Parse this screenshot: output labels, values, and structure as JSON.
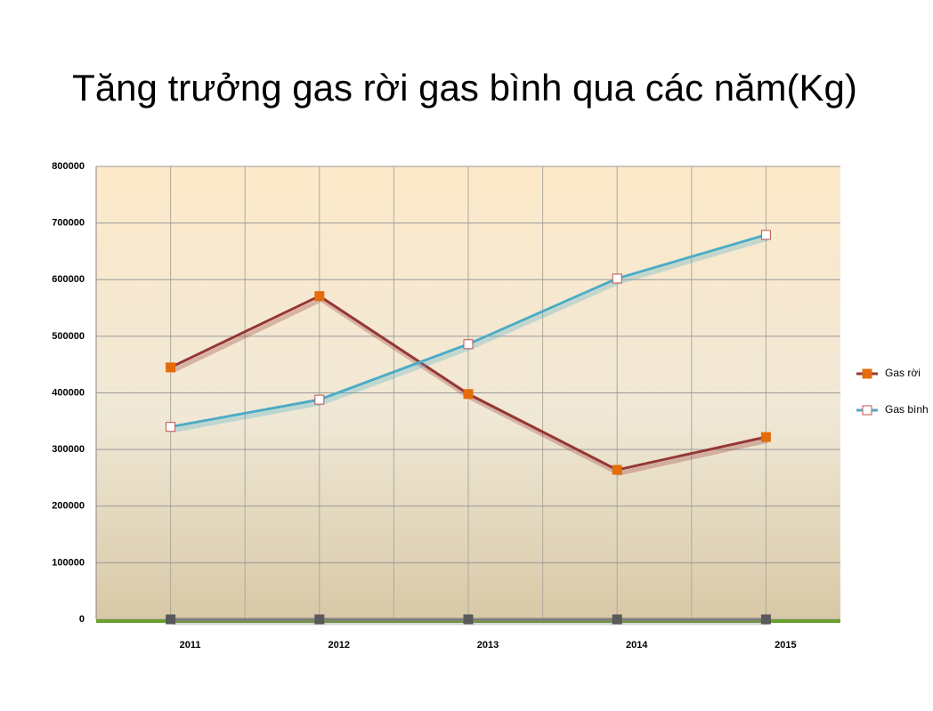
{
  "chart_data": {
    "type": "line",
    "title": "Tăng trưởng gas rời gas bình qua các năm(Kg)",
    "categories": [
      "2011",
      "2012",
      "2013",
      "2014",
      "2015"
    ],
    "series": [
      {
        "name": "Gas rời",
        "color": "#953735",
        "marker_color": "#e46c0a",
        "values": [
          445000,
          571000,
          398000,
          264000,
          322000
        ]
      },
      {
        "name": "Gas bình",
        "color": "#4bacc6",
        "marker_color": "#ffffff",
        "values": [
          340000,
          388000,
          486000,
          602000,
          679000
        ]
      },
      {
        "color": "#7f7f7f",
        "marker_color": "#595959",
        "values": [
          0,
          0,
          0,
          0,
          0
        ]
      }
    ],
    "ylim": [
      0,
      800000
    ],
    "yticks": [
      0,
      100000,
      200000,
      300000,
      400000,
      500000,
      600000,
      700000,
      800000
    ],
    "grid": true,
    "legend": "right"
  }
}
